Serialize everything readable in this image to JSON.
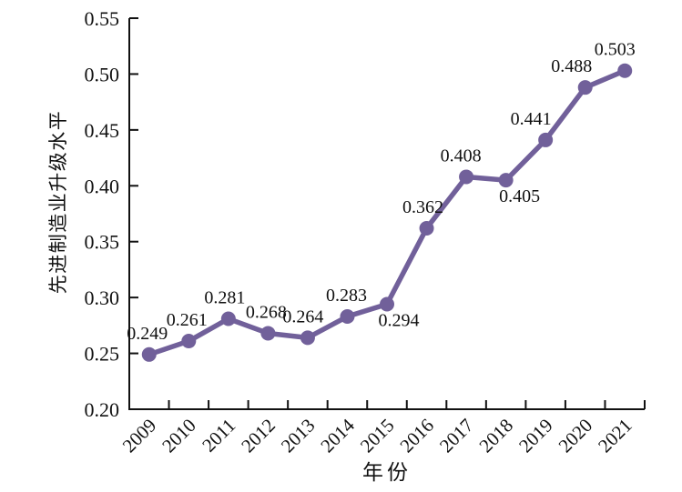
{
  "chart_data": {
    "type": "line",
    "title": "",
    "xlabel": "年份",
    "ylabel": "先进制造业升级水平",
    "categories": [
      "2009",
      "2010",
      "2011",
      "2012",
      "2013",
      "2014",
      "2015",
      "2016",
      "2017",
      "2018",
      "2019",
      "2020",
      "2021"
    ],
    "values": [
      0.249,
      0.261,
      0.281,
      0.268,
      0.264,
      0.283,
      0.294,
      0.362,
      0.408,
      0.405,
      0.441,
      0.488,
      0.503
    ],
    "data_label_format_decimals": 3,
    "ylim": [
      0.2,
      0.55
    ],
    "ytick_step": 0.05,
    "ytick_labels": [
      "0.20",
      "0.25",
      "0.30",
      "0.35",
      "0.40",
      "0.45",
      "0.50",
      "0.55"
    ],
    "grid": false,
    "legend": null,
    "marker": "circle",
    "line_color": "#71609a",
    "axis_color": "#111111",
    "text_color": "#111111",
    "background": "#ffffff",
    "xtick_rotation_deg": -45,
    "label_placement": [
      {
        "side": "above",
        "dx": -2
      },
      {
        "side": "above",
        "dx": -2
      },
      {
        "side": "above",
        "dx": -4
      },
      {
        "side": "above",
        "dx": -2
      },
      {
        "side": "above",
        "dx": -5
      },
      {
        "side": "above",
        "dx": -1
      },
      {
        "side": "below",
        "dx": 13
      },
      {
        "side": "above",
        "dx": -4
      },
      {
        "side": "above",
        "dx": -6
      },
      {
        "side": "below",
        "dx": 15
      },
      {
        "side": "above",
        "dx": -16
      },
      {
        "side": "above",
        "dx": -15
      },
      {
        "side": "above",
        "dx": -11
      }
    ]
  }
}
